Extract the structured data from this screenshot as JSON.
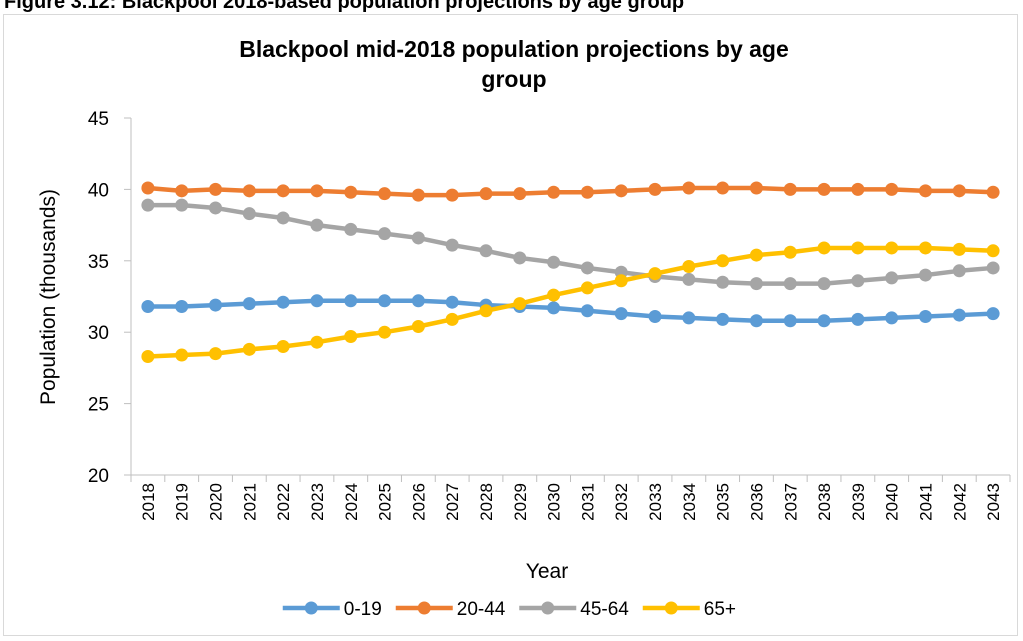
{
  "figure_caption": "Figure 3.12: Blackpool 2018-based population projections by age group",
  "chart_data": {
    "type": "line",
    "title_lines": [
      "Blackpool mid-2018 population projections by age",
      "group"
    ],
    "xlabel": "Year",
    "ylabel": "Population (thousands)",
    "ylim": [
      20,
      45
    ],
    "yticks": [
      20,
      25,
      30,
      35,
      40,
      45
    ],
    "grid": false,
    "legend_position": "bottom",
    "categories": [
      "2018",
      "2019",
      "2020",
      "2021",
      "2022",
      "2023",
      "2024",
      "2025",
      "2026",
      "2027",
      "2028",
      "2029",
      "2030",
      "2031",
      "2032",
      "2033",
      "2034",
      "2035",
      "2036",
      "2037",
      "2038",
      "2039",
      "2040",
      "2041",
      "2042",
      "2043"
    ],
    "series": [
      {
        "name": "0-19",
        "color": "#5b9bd5",
        "values": [
          31.8,
          31.8,
          31.9,
          32.0,
          32.1,
          32.2,
          32.2,
          32.2,
          32.2,
          32.1,
          31.9,
          31.8,
          31.7,
          31.5,
          31.3,
          31.1,
          31.0,
          30.9,
          30.8,
          30.8,
          30.8,
          30.9,
          31.0,
          31.1,
          31.2,
          31.3
        ]
      },
      {
        "name": "20-44",
        "color": "#ed7d31",
        "values": [
          40.1,
          39.9,
          40.0,
          39.9,
          39.9,
          39.9,
          39.8,
          39.7,
          39.6,
          39.6,
          39.7,
          39.7,
          39.8,
          39.8,
          39.9,
          40.0,
          40.1,
          40.1,
          40.1,
          40.0,
          40.0,
          40.0,
          40.0,
          39.9,
          39.9,
          39.8
        ]
      },
      {
        "name": "45-64",
        "color": "#a5a5a5",
        "values": [
          38.9,
          38.9,
          38.7,
          38.3,
          38.0,
          37.5,
          37.2,
          36.9,
          36.6,
          36.1,
          35.7,
          35.2,
          34.9,
          34.5,
          34.2,
          33.9,
          33.7,
          33.5,
          33.4,
          33.4,
          33.4,
          33.6,
          33.8,
          34.0,
          34.3,
          34.5
        ]
      },
      {
        "name": "65+",
        "color": "#ffc000",
        "values": [
          28.3,
          28.4,
          28.5,
          28.8,
          29.0,
          29.3,
          29.7,
          30.0,
          30.4,
          30.9,
          31.5,
          32.0,
          32.6,
          33.1,
          33.6,
          34.1,
          34.6,
          35.0,
          35.4,
          35.6,
          35.9,
          35.9,
          35.9,
          35.9,
          35.8,
          35.7
        ]
      }
    ]
  }
}
